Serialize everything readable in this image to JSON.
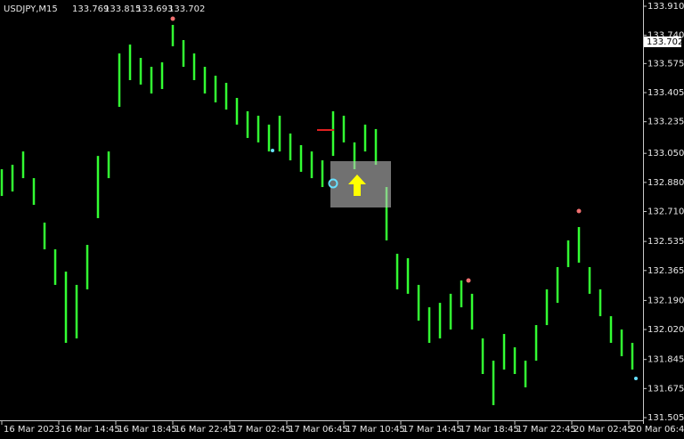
{
  "header": {
    "symbol": "USDJPY,M15",
    "open": 133.769,
    "high": 133.815,
    "low": 133.693,
    "close": 133.702
  },
  "chart_data": {
    "type": "range",
    "color": "#33ff33",
    "current_price": 133.702,
    "x": [
      0,
      3,
      6,
      9,
      12,
      15,
      18,
      21,
      24,
      27,
      30,
      33,
      36,
      39,
      42,
      45,
      48,
      51,
      54,
      57,
      60,
      63,
      66,
      69,
      72,
      75,
      78,
      81,
      84,
      87,
      90,
      93,
      96,
      99,
      102,
      105,
      108,
      111,
      114,
      117,
      120,
      123,
      126,
      129,
      132,
      135,
      138,
      141,
      144,
      147,
      150,
      153,
      156,
      159,
      162,
      165,
      168,
      171,
      174,
      177
    ],
    "high": [
      132.957,
      132.983,
      133.061,
      132.905,
      132.645,
      132.489,
      132.359,
      132.281,
      132.515,
      133.035,
      133.061,
      133.634,
      133.686,
      133.608,
      133.556,
      133.582,
      133.801,
      133.712,
      133.634,
      133.556,
      133.504,
      133.462,
      133.374,
      133.296,
      133.27,
      133.218,
      133.27,
      133.166,
      133.098,
      133.061,
      133.009,
      133.296,
      133.27,
      133.114,
      133.218,
      133.192,
      132.853,
      132.463,
      132.437,
      132.281,
      132.15,
      132.176,
      132.229,
      132.307,
      132.229,
      131.968,
      131.838,
      131.994,
      131.916,
      131.838,
      132.046,
      132.255,
      132.385,
      132.541,
      132.619,
      132.385,
      132.255,
      132.098,
      132.02,
      131.942
    ],
    "low": [
      132.801,
      132.827,
      132.905,
      132.749,
      132.489,
      132.281,
      131.942,
      131.968,
      132.255,
      132.671,
      132.905,
      133.322,
      133.478,
      133.452,
      133.4,
      133.426,
      133.676,
      133.556,
      133.478,
      133.4,
      133.348,
      133.306,
      133.218,
      133.14,
      133.114,
      133.061,
      133.061,
      133.009,
      132.942,
      132.905,
      132.853,
      133.035,
      133.114,
      132.957,
      133.061,
      132.983,
      132.541,
      132.255,
      132.229,
      132.072,
      131.942,
      131.968,
      132.02,
      132.15,
      132.02,
      131.76,
      131.578,
      131.786,
      131.76,
      131.682,
      131.838,
      132.046,
      132.176,
      132.385,
      132.411,
      132.229,
      132.098,
      131.942,
      131.864,
      131.786
    ],
    "xlim": [
      -0.5,
      180
    ],
    "xticks": [
      {
        "value": 0,
        "label": "16 Mar 2023"
      },
      {
        "value": 16,
        "label": "16 Mar 14:45"
      },
      {
        "value": 32,
        "label": "16 Mar 18:45"
      },
      {
        "value": 48,
        "label": "16 Mar 22:45"
      },
      {
        "value": 64,
        "label": "17 Mar 02:45"
      },
      {
        "value": 80,
        "label": "17 Mar 06:45"
      },
      {
        "value": 96,
        "label": "17 Mar 10:45"
      },
      {
        "value": 112,
        "label": "17 Mar 14:45"
      },
      {
        "value": 128,
        "label": "17 Mar 18:45"
      },
      {
        "value": 144,
        "label": "17 Mar 22:45"
      },
      {
        "value": 160,
        "label": "20 Mar 02:45"
      },
      {
        "value": 176,
        "label": "20 Mar 06:45"
      }
    ],
    "ylim": [
      131.505,
      133.91
    ],
    "yticks": [
      {
        "value": 133.91,
        "label": "133.910"
      },
      {
        "value": 133.74,
        "label": "133.740"
      },
      133.575,
      133.405,
      133.235,
      {
        "value": 133.05,
        "label": "133.050"
      },
      {
        "value": 132.88,
        "label": "132.880"
      },
      {
        "value": 132.71,
        "label": "132.710"
      },
      132.535,
      132.365,
      {
        "value": 132.19,
        "label": "132.190"
      },
      {
        "value": 132.02,
        "label": "132.020"
      },
      131.845,
      131.675,
      131.505
    ]
  }
}
